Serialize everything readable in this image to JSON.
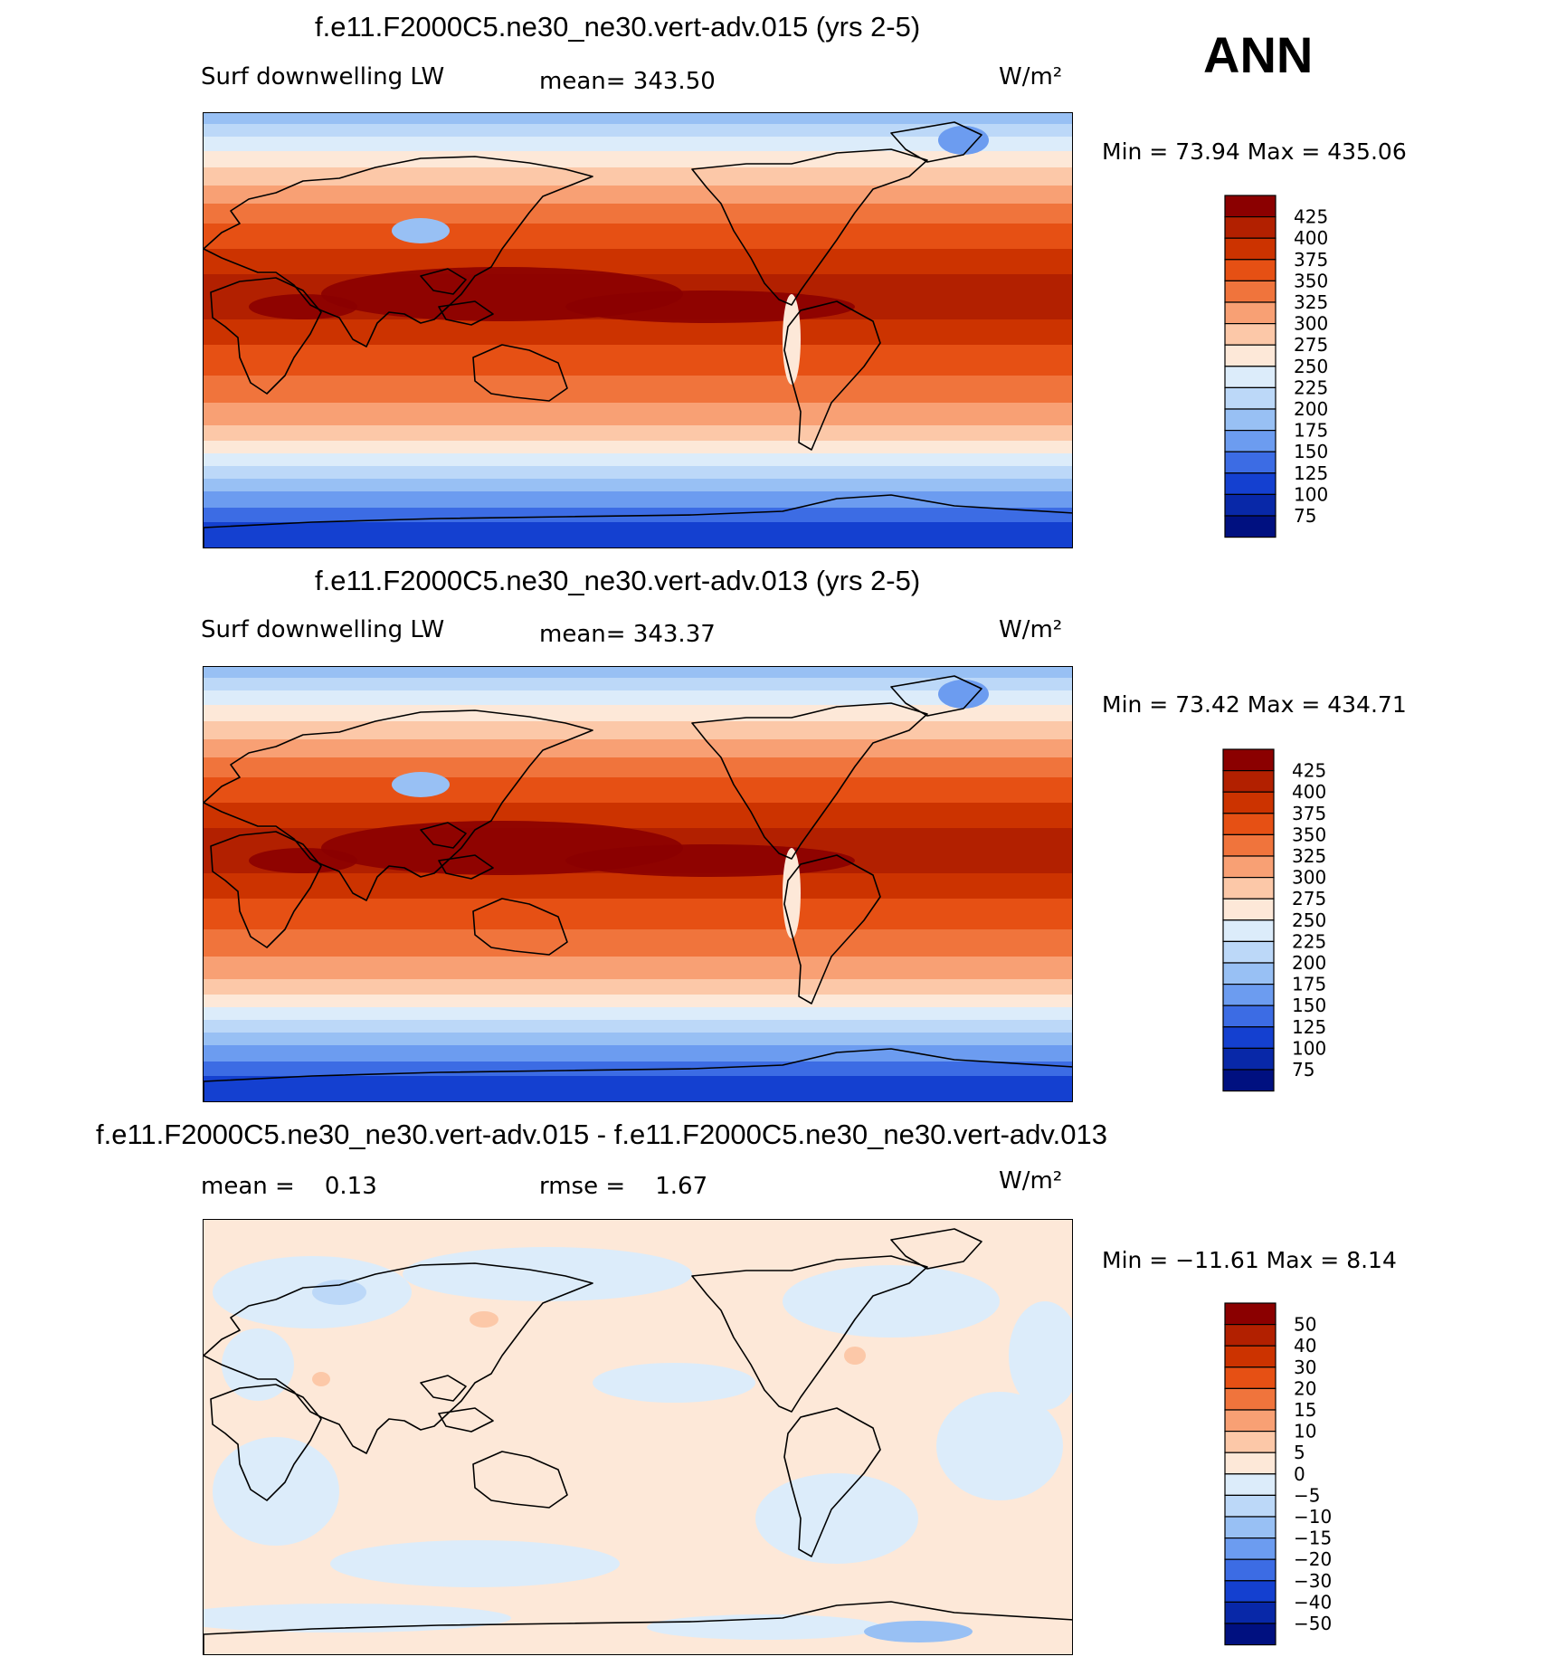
{
  "season": "ANN",
  "panels": [
    {
      "id": "case1",
      "title": "f.e11.F2000C5.ne30_ne30.vert-adv.015 (yrs 2-5)",
      "variable": "Surf downwelling LW",
      "stat_label": "mean=",
      "stat_value": "343.50",
      "units": "W/m²",
      "minmax_text": "Min =   73.94 Max =  435.06",
      "colorbar_labels": [
        "425",
        "400",
        "375",
        "350",
        "325",
        "300",
        "275",
        "250",
        "225",
        "200",
        "175",
        "150",
        "125",
        "100",
        "75"
      ]
    },
    {
      "id": "case2",
      "title": "f.e11.F2000C5.ne30_ne30.vert-adv.013 (yrs 2-5)",
      "variable": "Surf downwelling LW",
      "stat_label": "mean=",
      "stat_value": "343.37",
      "units": "W/m²",
      "minmax_text": "Min =   73.42 Max =  434.71",
      "colorbar_labels": [
        "425",
        "400",
        "375",
        "350",
        "325",
        "300",
        "275",
        "250",
        "225",
        "200",
        "175",
        "150",
        "125",
        "100",
        "75"
      ]
    },
    {
      "id": "diff",
      "title": "f.e11.F2000C5.ne30_ne30.vert-adv.015 - f.e11.F2000C5.ne30_ne30.vert-adv.013",
      "mean_label": "mean =",
      "mean_value": "0.13",
      "rmse_label": "rmse =",
      "rmse_value": "1.67",
      "units": "W/m²",
      "minmax_text": "Min = −11.61 Max =    8.14",
      "colorbar_labels": [
        "50",
        "40",
        "30",
        "20",
        "15",
        "10",
        "5",
        "0",
        "−5",
        "−10",
        "−15",
        "−20",
        "−30",
        "−40",
        "−50"
      ]
    }
  ],
  "colors": {
    "abs_levels": [
      "#8b0000",
      "#b22000",
      "#cc3300",
      "#e65014",
      "#f0743c",
      "#f8a074",
      "#fcc8a8",
      "#fde8d8",
      "#dcecfa",
      "#bcd8f8",
      "#98c0f4",
      "#6c9cf0",
      "#3c6ce4",
      "#1440d0",
      "#0828a8",
      "#001080"
    ],
    "diff_levels": [
      "#8b0000",
      "#b22000",
      "#cc3300",
      "#e65014",
      "#f0743c",
      "#f8a074",
      "#fcc8a8",
      "#fde8d8",
      "#dcecfa",
      "#bcd8f8",
      "#98c0f4",
      "#6c9cf0",
      "#3c6ce4",
      "#1440d0",
      "#0828a8",
      "#001080"
    ]
  },
  "chart_data": [
    {
      "type": "heatmap",
      "title": "f.e11.F2000C5.ne30_ne30.vert-adv.015 (yrs 2-5)",
      "variable": "Surf downwelling LW",
      "units": "W/m2",
      "mean": 343.5,
      "min": 73.94,
      "max": 435.06,
      "contour_levels": [
        75,
        100,
        125,
        150,
        175,
        200,
        225,
        250,
        275,
        300,
        325,
        350,
        375,
        400,
        425
      ],
      "projection": "global cylindrical equidistant, Pacific-centred"
    },
    {
      "type": "heatmap",
      "title": "f.e11.F2000C5.ne30_ne30.vert-adv.013 (yrs 2-5)",
      "variable": "Surf downwelling LW",
      "units": "W/m2",
      "mean": 343.37,
      "min": 73.42,
      "max": 434.71,
      "contour_levels": [
        75,
        100,
        125,
        150,
        175,
        200,
        225,
        250,
        275,
        300,
        325,
        350,
        375,
        400,
        425
      ],
      "projection": "global cylindrical equidistant, Pacific-centred"
    },
    {
      "type": "heatmap",
      "title": "f.e11.F2000C5.ne30_ne30.vert-adv.015 - f.e11.F2000C5.ne30_ne30.vert-adv.013",
      "units": "W/m2",
      "mean": 0.13,
      "rmse": 1.67,
      "min": -11.61,
      "max": 8.14,
      "contour_levels": [
        -50,
        -40,
        -30,
        -20,
        -15,
        -10,
        -5,
        0,
        5,
        10,
        15,
        20,
        30,
        40,
        50
      ],
      "projection": "global cylindrical equidistant, Pacific-centred"
    }
  ]
}
